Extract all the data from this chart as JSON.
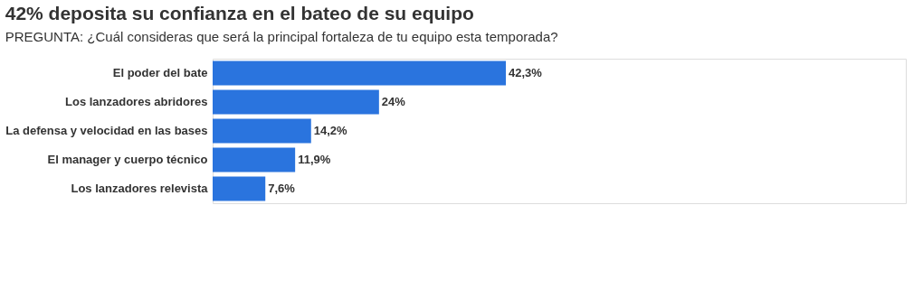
{
  "chart_data": {
    "type": "bar",
    "orientation": "horizontal",
    "title": "42% deposita su confianza en el bateo de su equipo",
    "subtitle": "PREGUNTA: ¿Cuál consideras que será la principal fortaleza de tu equipo esta temporada?",
    "categories": [
      "El poder del bate",
      "Los lanzadores abridores",
      "La defensa y velocidad en las bases",
      "El manager y cuerpo técnico",
      "Los lanzadores relevista"
    ],
    "values": [
      42.3,
      24,
      14.2,
      11.9,
      7.6
    ],
    "value_labels": [
      "42,3%",
      "24%",
      "14,2%",
      "11,9%",
      "7,6%"
    ],
    "color": "#2a74de",
    "xlim": [
      0,
      100
    ],
    "tick_labels": "y"
  }
}
